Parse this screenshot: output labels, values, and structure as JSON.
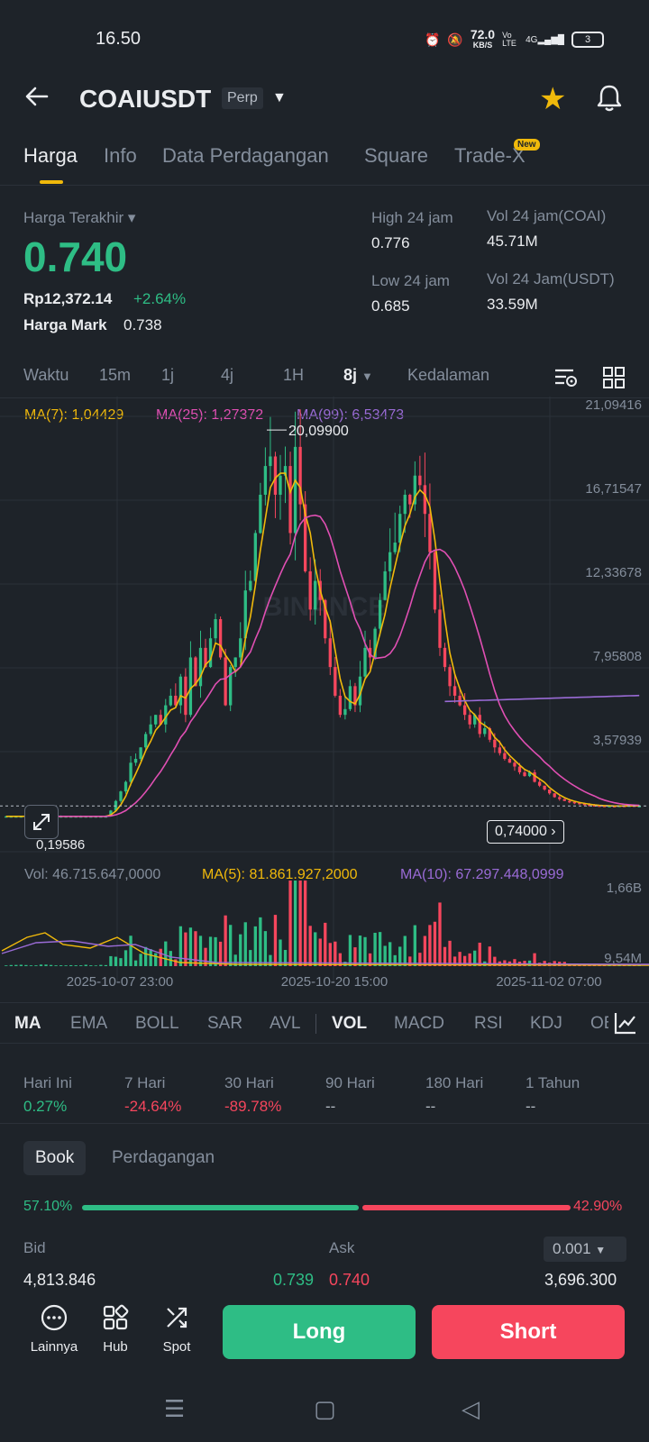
{
  "status": {
    "time": "16.50",
    "net_speed": "72.0",
    "net_unit": "KB/S",
    "vo_lte": "Vo LTE",
    "signal": "4G",
    "battery": "3"
  },
  "header": {
    "symbol": "COAIUSDT",
    "contract": "Perp"
  },
  "tabs": [
    {
      "label": "Harga",
      "active": true
    },
    {
      "label": "Info"
    },
    {
      "label": "Data Perdagangan"
    },
    {
      "label": "Square"
    },
    {
      "label": "Trade-X"
    }
  ],
  "new_badge": "New",
  "ticker": {
    "last_price_label": "Harga Terakhir",
    "last_price": "0.740",
    "idr_price": "Rp12,372.14",
    "change": "+2.64%",
    "mark_label": "Harga Mark",
    "mark_price": "0.738",
    "high_label": "High 24 jam",
    "high": "0.776",
    "low_label": "Low 24 jam",
    "low": "0.685",
    "vol_coin_label": "Vol 24 jam(COAI)",
    "vol_coin": "45.71M",
    "vol_usdt_label": "Vol 24 Jam(USDT)",
    "vol_usdt": "33.59M"
  },
  "intervals": [
    "Waktu",
    "15m",
    "1j",
    "4j",
    "1H",
    "8j",
    "Kedalaman"
  ],
  "active_interval": "8j",
  "ma_labels": {
    "ma7": "MA(7): 1,04429",
    "ma25": "MA(25): 1,27372",
    "ma99": "MA(99): 6,53473"
  },
  "vol_labels": {
    "vol": "Vol: 46.715.647,0000",
    "ma5": "MA(5): 81.861.927,2000",
    "ma10": "MA(10): 67.297.448,0999"
  },
  "price_tag": "0,74000",
  "watermark": "BINANCE",
  "chart_data": {
    "type": "candlestick",
    "y_ticks": [
      "21,09416",
      "16,71547",
      "12,33678",
      "7,95808",
      "3,57939"
    ],
    "vol_ticks": [
      "1,66B",
      "9,54M"
    ],
    "x_ticks": [
      "2025-10-07 23:00",
      "2025-10-20 15:00",
      "2025-11-02 07:00"
    ],
    "high_annotation": "20,09900",
    "low_annotation": "0,19586",
    "ylim": [
      0,
      21.09416
    ],
    "current_price": 0.74,
    "colors": {
      "up": "#2ebd85",
      "down": "#f6465d",
      "ma7": "#f0b90b",
      "ma25": "#e04fb3",
      "ma99": "#9a6bd6"
    },
    "closes": [
      0.2,
      0.2,
      0.2,
      0.2,
      0.2,
      0.2,
      0.2,
      0.2,
      0.2,
      0.2,
      0.2,
      0.2,
      0.2,
      0.2,
      0.2,
      0.2,
      0.2,
      0.2,
      0.2,
      0.2,
      0.2,
      0.5,
      1.0,
      1.5,
      2.0,
      3.0,
      3.2,
      3.8,
      4.5,
      5.0,
      5.5,
      5.0,
      6.0,
      6.5,
      6.0,
      7.5,
      5.5,
      8.5,
      7.0,
      9.0,
      8.0,
      9.5,
      10.5,
      8.5,
      6.0,
      8.0,
      8.5,
      9.5,
      12.0,
      12.5,
      15.0,
      17.0,
      18.5,
      19.0,
      17.0,
      18.0,
      18.5,
      15.0,
      19.5,
      16.5,
      13.0,
      11.0,
      12.5,
      11.5,
      9.5,
      8.0,
      6.5,
      5.5,
      5.8,
      7.0,
      6.0,
      7.5,
      9.0,
      8.5,
      10.0,
      11.5,
      13.0,
      14.0,
      14.5,
      16.0,
      17.0,
      16.5,
      18.0,
      17.5,
      16.0,
      14.0,
      11.0,
      9.0,
      8.0,
      7.0,
      6.5,
      6.0,
      5.5,
      5.0,
      5.5,
      4.5,
      4.8,
      4.2,
      3.8,
      3.5,
      3.2,
      3.0,
      2.8,
      2.5,
      2.3,
      2.5,
      2.0,
      1.8,
      1.6,
      1.4,
      1.2,
      1.1,
      1.0,
      0.95,
      0.9,
      0.85,
      0.8,
      0.78,
      0.76,
      0.75,
      0.74,
      0.74,
      0.73,
      0.75,
      0.74,
      0.76,
      0.74,
      0.74
    ]
  },
  "indicators": [
    "MA",
    "EMA",
    "BOLL",
    "SAR",
    "AVL",
    "VOL",
    "MACD",
    "RSI",
    "KDJ",
    "OBV"
  ],
  "performance": [
    {
      "label": "Hari Ini",
      "value": "0.27%",
      "dir": "up"
    },
    {
      "label": "7 Hari",
      "value": "-24.64%",
      "dir": "down"
    },
    {
      "label": "30 Hari",
      "value": "-89.78%",
      "dir": "down"
    },
    {
      "label": "90 Hari",
      "value": "--",
      "dir": "none"
    },
    {
      "label": "180 Hari",
      "value": "--",
      "dir": "none"
    },
    {
      "label": "1 Tahun",
      "value": "--",
      "dir": "none"
    }
  ],
  "book": {
    "tab_book": "Book",
    "tab_trades": "Perdagangan",
    "bid_pct": "57.10%",
    "ask_pct": "42.90%",
    "bid_ratio": 0.571,
    "bid_label": "Bid",
    "ask_label": "Ask",
    "depth_step": "0.001",
    "bid_qty": "4,813.846",
    "bid_price": "0.739",
    "ask_price": "0.740",
    "ask_qty": "3,696.300"
  },
  "bottom": {
    "more": "Lainnya",
    "hub": "Hub",
    "spot": "Spot",
    "long": "Long",
    "short": "Short"
  }
}
